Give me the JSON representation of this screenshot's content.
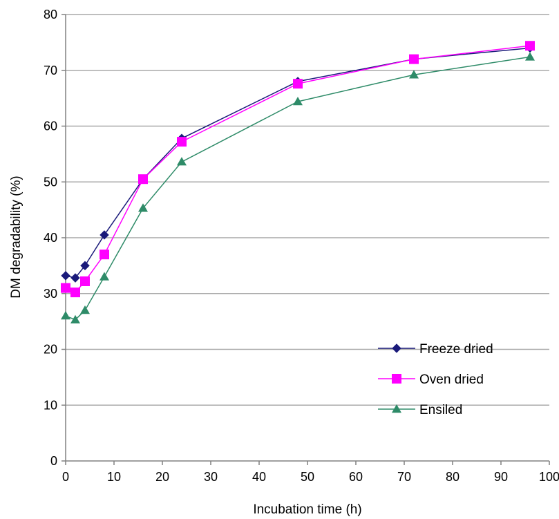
{
  "chart_data": {
    "type": "line",
    "title": "",
    "xlabel": "Incubation time (h)",
    "ylabel": "DM degradability (%)",
    "xlim": [
      0,
      100
    ],
    "ylim": [
      0,
      80
    ],
    "x_ticks": [
      0,
      10,
      20,
      30,
      40,
      50,
      60,
      70,
      80,
      90,
      100
    ],
    "y_ticks": [
      0,
      10,
      20,
      30,
      40,
      50,
      60,
      70,
      80
    ],
    "grid": "horizontal",
    "legend_position": "bottom-right",
    "series": [
      {
        "name": "Freeze dried",
        "color": "#1a1a7a",
        "marker": "diamond",
        "x": [
          0,
          2,
          4,
          8,
          16,
          24,
          48,
          72,
          96
        ],
        "y": [
          33.2,
          32.8,
          35.0,
          40.5,
          50.5,
          57.8,
          68.0,
          72.0,
          74.0
        ]
      },
      {
        "name": "Oven dried",
        "color": "#ff00ff",
        "marker": "square",
        "x": [
          0,
          2,
          4,
          8,
          16,
          24,
          48,
          72,
          96
        ],
        "y": [
          31.0,
          30.2,
          32.2,
          37.0,
          50.5,
          57.2,
          67.6,
          72.0,
          74.4
        ]
      },
      {
        "name": "Ensiled",
        "color": "#2e8b68",
        "marker": "triangle",
        "x": [
          0,
          2,
          4,
          8,
          16,
          24,
          48,
          72,
          96
        ],
        "y": [
          26.0,
          25.3,
          27.0,
          33.0,
          45.3,
          53.6,
          64.4,
          69.2,
          72.4
        ]
      }
    ]
  }
}
